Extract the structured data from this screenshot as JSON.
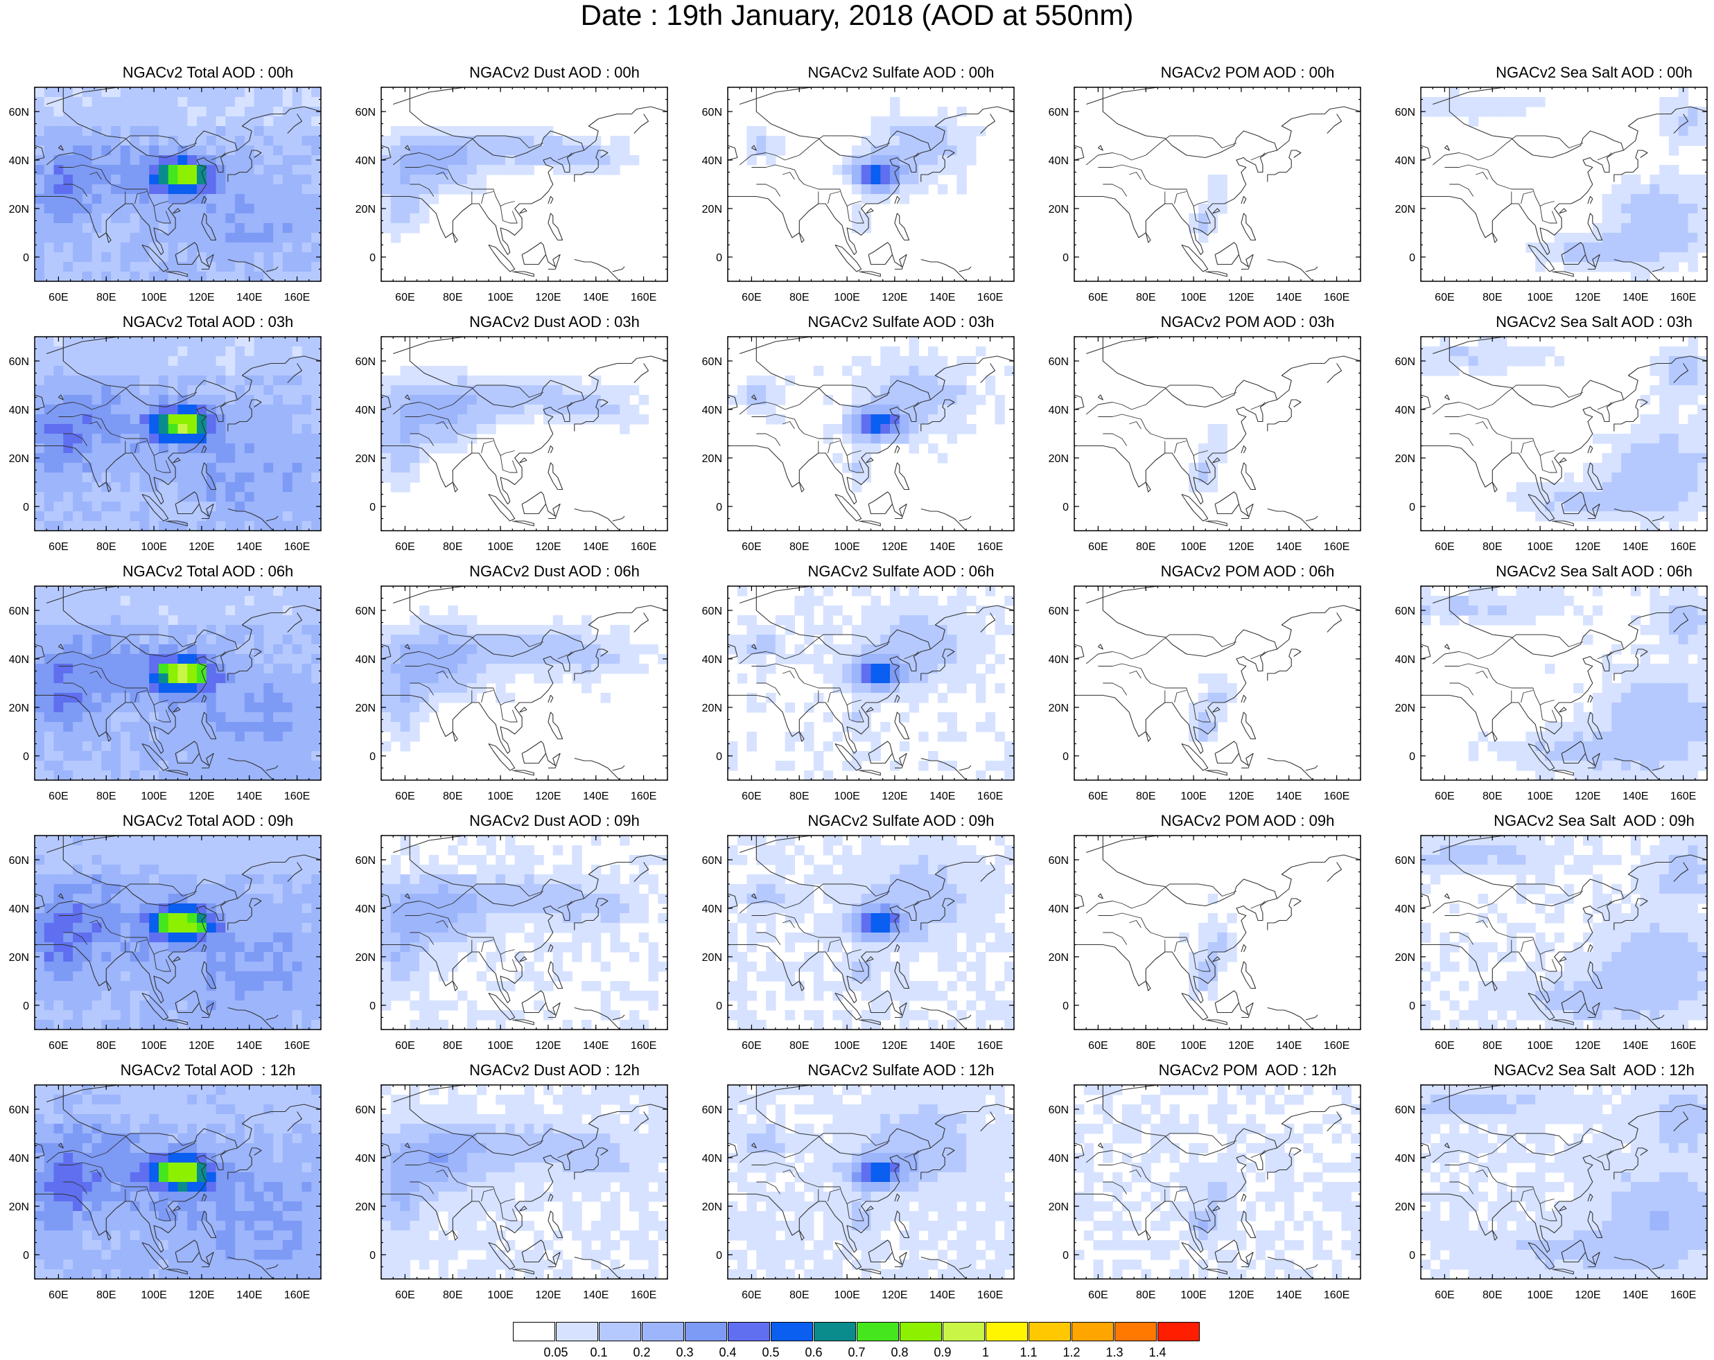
{
  "title": "Date : 19th January, 2018 (AOD at 550nm)",
  "chart_data": {
    "type": "heatmap",
    "title": "Date : 19th January, 2018 (AOD at 550nm)",
    "x_ticks": [
      "60E",
      "80E",
      "100E",
      "120E",
      "140E",
      "160E"
    ],
    "y_ticks": [
      "60N",
      "40N",
      "20N",
      "0"
    ],
    "lon_range": [
      50,
      170
    ],
    "lat_range": [
      -10,
      70
    ],
    "times": [
      "00h",
      "03h",
      "06h",
      "09h",
      "12h"
    ],
    "species": [
      "Total",
      "Dust",
      "Sulfate",
      "POM",
      "Sea Salt"
    ],
    "panels": [
      [
        "NGACv2 Total AOD : 00h",
        "NGACv2 Dust AOD : 00h",
        "NGACv2 Sulfate AOD : 00h",
        "NGACv2 POM AOD : 00h",
        "NGACv2 Sea Salt AOD : 00h"
      ],
      [
        "NGACv2 Total AOD : 03h",
        "NGACv2 Dust AOD : 03h",
        "NGACv2 Sulfate AOD : 03h",
        "NGACv2 POM AOD : 03h",
        "NGACv2 Sea Salt AOD : 03h"
      ],
      [
        "NGACv2 Total AOD : 06h",
        "NGACv2 Dust AOD : 06h",
        "NGACv2 Sulfate AOD : 06h",
        "NGACv2 POM AOD : 06h",
        "NGACv2 Sea Salt AOD : 06h"
      ],
      [
        "NGACv2 Total AOD : 09h",
        "NGACv2 Dust AOD : 09h",
        "NGACv2 Sulfate AOD : 09h",
        "NGACv2 POM AOD : 09h",
        "NGACv2 Sea Salt  AOD : 09h"
      ],
      [
        "NGACv2 Total AOD  : 12h",
        "NGACv2 Dust AOD : 12h",
        "NGACv2 Sulfate AOD : 12h",
        "NGACv2 POM  AOD : 12h",
        "NGACv2 Sea Salt  AOD : 12h"
      ]
    ],
    "colorbar": {
      "labels": [
        "0.05",
        "0.1",
        "0.2",
        "0.3",
        "0.4",
        "0.5",
        "0.6",
        "0.7",
        "0.8",
        "0.9",
        "1",
        "1.1",
        "1.2",
        "1.3",
        "1.4"
      ],
      "colors": [
        "#ffffff",
        "#d6e2ff",
        "#b5c9ff",
        "#9cb5fb",
        "#7d9af5",
        "#5f6ff0",
        "#0a5ef0",
        "#0a8c8c",
        "#46e61e",
        "#8cf000",
        "#c8f546",
        "#fff500",
        "#ffc800",
        "#ffa500",
        "#ff7800",
        "#ff1e00"
      ]
    }
  }
}
